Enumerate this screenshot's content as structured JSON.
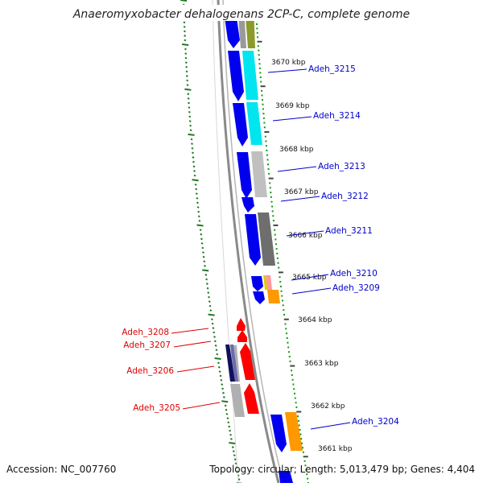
{
  "title": "Anaeromyxobacter dehalogenans 2CP-C, complete genome",
  "accession": "Accession: NC_007760",
  "summary": "Topology: circular; Length: 5,013,479 bp; Genes: 4,404",
  "colors": {
    "forward_label": "#0000cc",
    "reverse_label": "#dd0000",
    "backbone": "#888888",
    "tick_outer": "#227722",
    "tick_inner": "#119911"
  },
  "kbp_markers": [
    {
      "label": "3670 kbp"
    },
    {
      "label": "3669 kbp"
    },
    {
      "label": "3668 kbp"
    },
    {
      "label": "3667 kbp"
    },
    {
      "label": "3666 kbp"
    },
    {
      "label": "3665 kbp"
    },
    {
      "label": "3664 kbp"
    },
    {
      "label": "3663 kbp"
    },
    {
      "label": "3662 kbp"
    },
    {
      "label": "3661 kbp"
    }
  ],
  "genes_forward": [
    {
      "label": "Adeh_3215"
    },
    {
      "label": "Adeh_3214"
    },
    {
      "label": "Adeh_3213"
    },
    {
      "label": "Adeh_3212"
    },
    {
      "label": "Adeh_3211"
    },
    {
      "label": "Adeh_3210"
    },
    {
      "label": "Adeh_3209"
    },
    {
      "label": "Adeh_3204"
    }
  ],
  "genes_reverse": [
    {
      "label": "Adeh_3208"
    },
    {
      "label": "Adeh_3207"
    },
    {
      "label": "Adeh_3206"
    },
    {
      "label": "Adeh_3205"
    }
  ]
}
